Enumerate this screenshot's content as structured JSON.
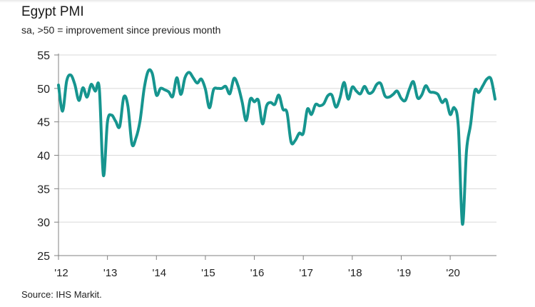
{
  "header": {
    "title": "Egypt PMI",
    "subtitle": "sa, >50 = improvement since previous month"
  },
  "footer": {
    "source": "Source: IHS Markit."
  },
  "colors": {
    "line": "#16958f",
    "grid": "#d9d9d9",
    "axis": "#808080"
  },
  "chart_data": {
    "type": "line",
    "title": "Egypt PMI",
    "subtitle": "sa, >50 = improvement since previous month",
    "xlabel": "",
    "ylabel": "",
    "ylim": [
      25,
      55
    ],
    "yticks": [
      25,
      30,
      35,
      40,
      45,
      50,
      55
    ],
    "xticks": [
      "'12",
      "'13",
      "'14",
      "'15",
      "'16",
      "'17",
      "'18",
      "'19",
      "'20"
    ],
    "x_start": "2012-01",
    "x_end": "2020-11",
    "frequency": "monthly",
    "grid": true,
    "legend": "none",
    "series": [
      {
        "name": "Egypt PMI",
        "values": [
          50.5,
          46.6,
          51.1,
          52.0,
          50.6,
          48.2,
          50.1,
          48.7,
          50.6,
          49.6,
          50.0,
          37.0,
          45.0,
          46.0,
          45.1,
          44.3,
          48.7,
          47.4,
          41.7,
          42.6,
          45.2,
          50.0,
          52.6,
          52.2,
          49.0,
          50.0,
          49.8,
          49.5,
          48.8,
          51.6,
          49.1,
          51.6,
          52.4,
          51.6,
          50.8,
          51.4,
          49.9,
          47.1,
          49.8,
          50.0,
          50.0,
          50.3,
          49.2,
          51.5,
          50.4,
          48.0,
          45.2,
          48.4,
          48.0,
          48.2,
          44.7,
          47.4,
          47.9,
          47.6,
          49.0,
          46.9,
          46.4,
          42.0,
          42.2,
          43.3,
          43.3,
          46.9,
          46.1,
          47.6,
          47.4,
          47.7,
          48.9,
          49.0,
          47.2,
          48.6,
          50.9,
          48.4,
          50.2,
          49.6,
          49.2,
          50.3,
          49.3,
          49.5,
          50.6,
          50.7,
          48.9,
          48.7,
          49.1,
          49.6,
          48.5,
          48.2,
          49.9,
          51.0,
          48.6,
          49.0,
          50.4,
          49.5,
          49.4,
          49.1,
          47.9,
          48.3,
          46.1,
          47.1,
          44.2,
          29.7,
          40.7,
          44.6,
          49.6,
          49.4,
          50.4,
          51.4,
          51.4,
          48.4
        ]
      }
    ]
  }
}
